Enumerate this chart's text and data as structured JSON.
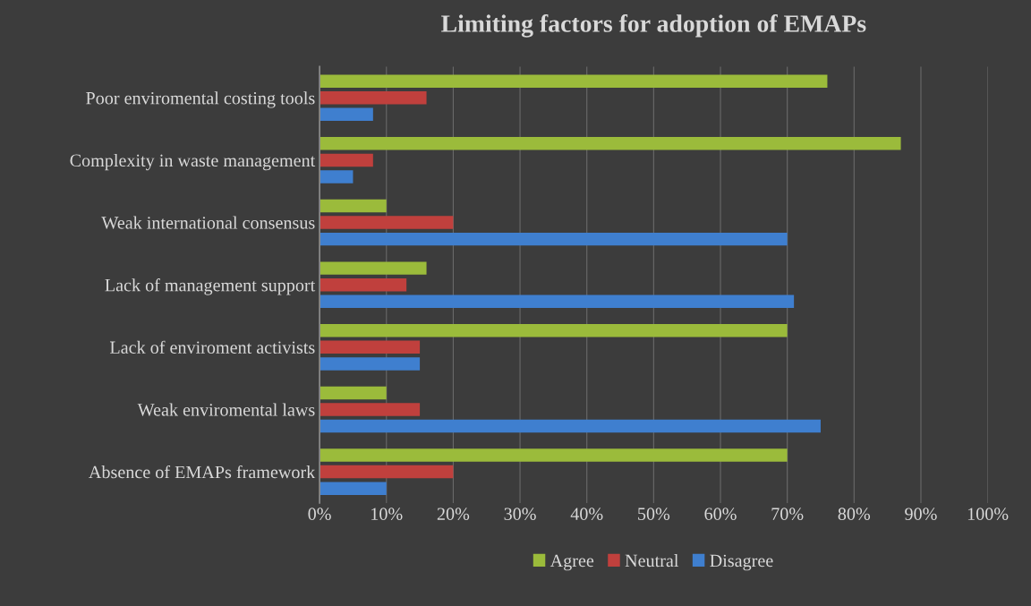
{
  "chart_data": {
    "type": "bar",
    "orientation": "horizontal",
    "title": "Limiting factors for adoption of EMAPs",
    "categories": [
      "Poor enviromental costing tools",
      "Complexity in waste management",
      "Weak international consensus",
      "Lack of management support",
      "Lack of enviroment activists",
      "Weak enviromental laws",
      "Absence of EMAPs framework"
    ],
    "series": [
      {
        "name": "Agree",
        "color": "#9bbb3b",
        "values": [
          76,
          87,
          10,
          16,
          70,
          10,
          70
        ]
      },
      {
        "name": "Neutral",
        "color": "#c0403d",
        "values": [
          16,
          8,
          20,
          13,
          15,
          15,
          20
        ]
      },
      {
        "name": "Disagree",
        "color": "#3f7fcf",
        "values": [
          8,
          5,
          70,
          71,
          15,
          75,
          10
        ]
      }
    ],
    "xlim": [
      0,
      100
    ],
    "xticks": [
      {
        "value": 0,
        "label": "0%"
      },
      {
        "value": 10,
        "label": "10%"
      },
      {
        "value": 20,
        "label": "20%"
      },
      {
        "value": 30,
        "label": "30%"
      },
      {
        "value": 40,
        "label": "40%"
      },
      {
        "value": 50,
        "label": "50%"
      },
      {
        "value": 60,
        "label": "60%"
      },
      {
        "value": 70,
        "label": "70%"
      },
      {
        "value": 80,
        "label": "80%"
      },
      {
        "value": 90,
        "label": "90%"
      },
      {
        "value": 100,
        "label": "100%"
      }
    ],
    "grid": "x",
    "legend": "bottom"
  }
}
